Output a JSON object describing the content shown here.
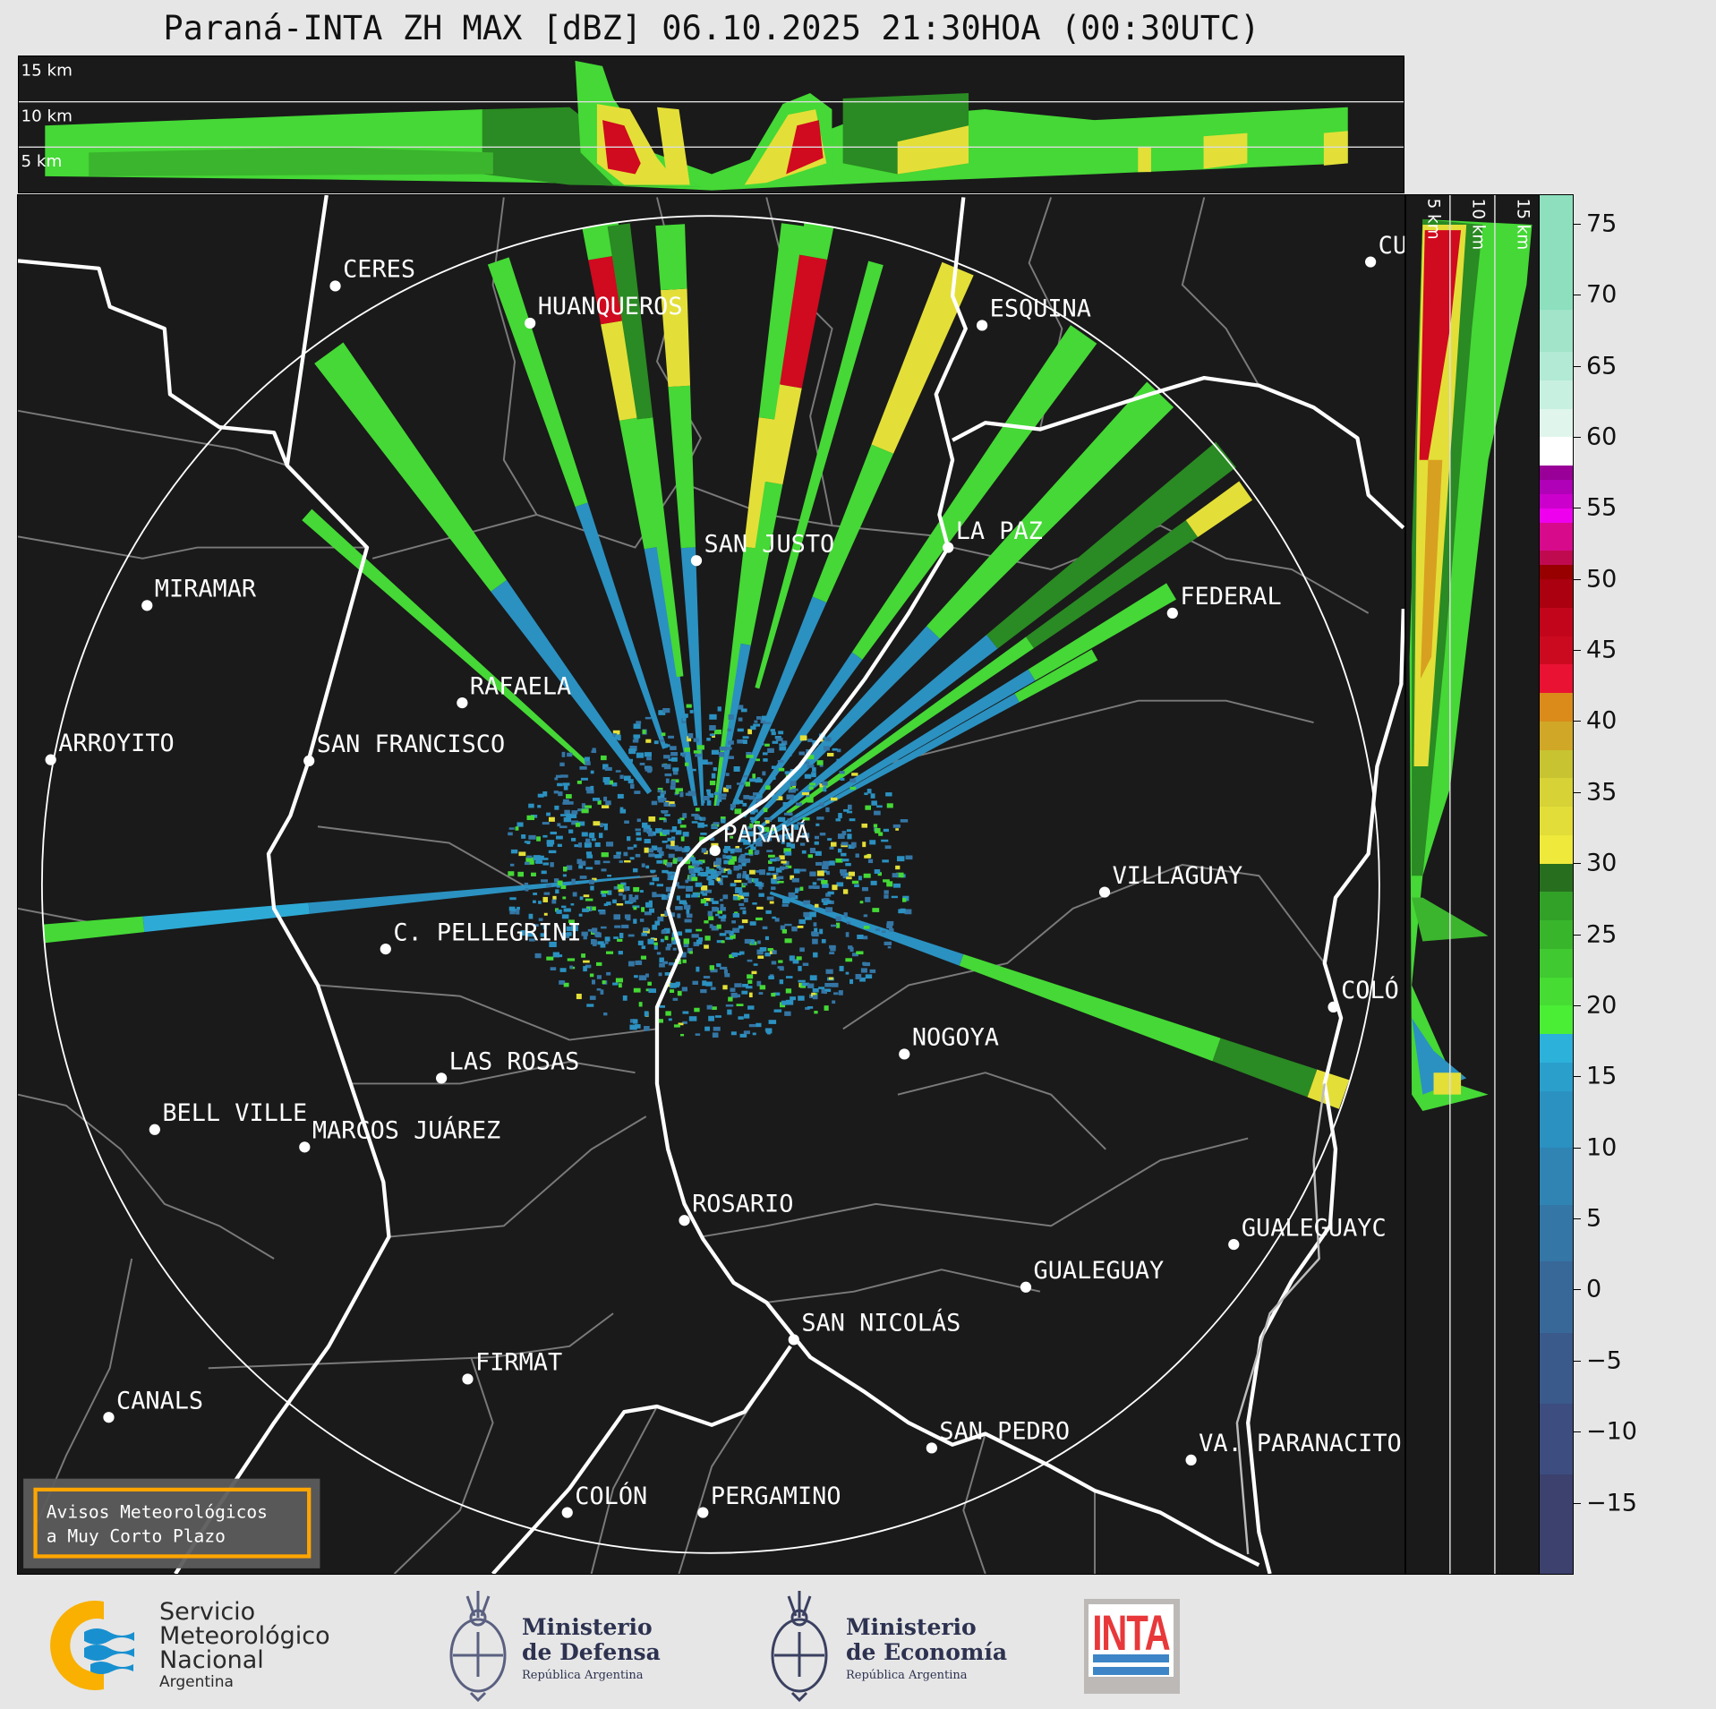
{
  "title": "Paraná-INTA ZH MAX [dBZ] 06.10.2025 21:30HOA (00:30UTC)",
  "top_panel": {
    "km_labels": [
      "15 km",
      "10 km",
      "5 km"
    ]
  },
  "side_panel": {
    "km_labels": [
      "5 km",
      "10 km",
      "15 km"
    ]
  },
  "map": {
    "cities": [
      "CERES",
      "HUANQUEROS",
      "ESQUINA",
      "CU",
      "SAN JUSTO",
      "LA PAZ",
      "MIRAMAR",
      "FEDERAL",
      "RAFAELA",
      "ARROYITO",
      "SAN FRANCISCO",
      "PARANÁ",
      "VILLAGUAY",
      "C. PELLEGRINI",
      "COLÓ",
      "NOGOYA",
      "LAS ROSAS",
      "BELL VILLE",
      "MARCOS JUÁREZ",
      "ROSARIO",
      "GUALEGUAYC",
      "GUALEGUAY",
      "SAN NICOLÁS",
      "FIRMAT",
      "CANALS",
      "SAN PEDRO",
      "VA. PARANACITO",
      "COLÓN",
      "PERGAMINO"
    ],
    "notice": {
      "line1": "Avisos Meteorológicos",
      "line2": "a Muy Corto Plazo",
      "border_color": "#ffa500"
    }
  },
  "colorbar": {
    "unit": "dBZ",
    "range": [
      -20,
      77
    ],
    "ticks": [
      "75",
      "70",
      "65",
      "60",
      "55",
      "50",
      "45",
      "40",
      "35",
      "30",
      "25",
      "20",
      "15",
      "10",
      "5",
      "0",
      "−5",
      "−10",
      "−15"
    ],
    "tick_values": [
      75,
      70,
      65,
      60,
      55,
      50,
      45,
      40,
      35,
      30,
      25,
      20,
      15,
      10,
      5,
      0,
      -5,
      -10,
      -15
    ],
    "bands": [
      [
        -20,
        -13,
        "#3c416d"
      ],
      [
        -13,
        -8,
        "#3d4d7f"
      ],
      [
        -8,
        -3,
        "#3b5a8c"
      ],
      [
        -3,
        2,
        "#386898"
      ],
      [
        2,
        6,
        "#3476a5"
      ],
      [
        6,
        10,
        "#2f84b3"
      ],
      [
        10,
        14,
        "#2b91c1"
      ],
      [
        14,
        16,
        "#2a9fcb"
      ],
      [
        16,
        18,
        "#2cb1da"
      ],
      [
        18,
        20,
        "#4aee35"
      ],
      [
        20,
        22,
        "#46dc33"
      ],
      [
        22,
        24,
        "#40c930"
      ],
      [
        24,
        26,
        "#39b52c"
      ],
      [
        26,
        28,
        "#32a128"
      ],
      [
        28,
        30,
        "#276f1f"
      ],
      [
        30,
        32,
        "#eee93a"
      ],
      [
        32,
        34,
        "#e2dd38"
      ],
      [
        34,
        36,
        "#d7d236"
      ],
      [
        36,
        38,
        "#c8c331"
      ],
      [
        38,
        40,
        "#d0a727"
      ],
      [
        40,
        42,
        "#da8b1a"
      ],
      [
        42,
        44,
        "#ea1232"
      ],
      [
        44,
        46,
        "#cc0a1f"
      ],
      [
        46,
        48,
        "#c3051b"
      ],
      [
        48,
        50,
        "#aa0010"
      ],
      [
        50,
        51,
        "#980000"
      ],
      [
        51,
        52,
        "#c00a50"
      ],
      [
        52,
        54,
        "#d80a8c"
      ],
      [
        54,
        55,
        "#ee00ee"
      ],
      [
        55,
        56,
        "#cc00cc"
      ],
      [
        56,
        57,
        "#b000b8"
      ],
      [
        57,
        58,
        "#980098"
      ],
      [
        58,
        60,
        "#ffffff"
      ],
      [
        60,
        62,
        "#e0f5ec"
      ],
      [
        62,
        64,
        "#c8f0e0"
      ],
      [
        64,
        66,
        "#b2ead5"
      ],
      [
        66,
        69,
        "#a1e4c9"
      ],
      [
        69,
        77,
        "#8ddfbe"
      ]
    ]
  },
  "footer": {
    "smn": {
      "line1": "Servicio",
      "line2": "Meteorológico",
      "line3": "Nacional",
      "line4": "Argentina"
    },
    "defensa": {
      "line1": "Ministerio",
      "line2": "de Defensa",
      "line3": "República Argentina"
    },
    "economia": {
      "line1": "Ministerio",
      "line2": "de Economía",
      "line3": "República Argentina"
    },
    "inta": {
      "text": "INTA"
    }
  }
}
